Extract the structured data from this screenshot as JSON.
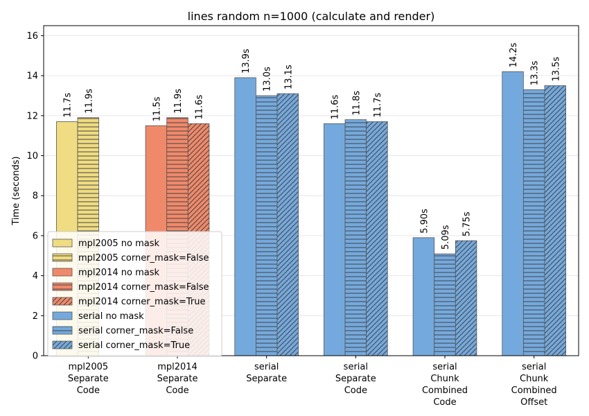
{
  "chart_data": {
    "type": "bar",
    "title": "lines random n=1000 (calculate and render)",
    "xlabel": "",
    "ylabel": "Time (seconds)",
    "ylim": [
      0,
      16.5
    ],
    "yticks": [
      0,
      2,
      4,
      6,
      8,
      10,
      12,
      14,
      16
    ],
    "grid": "horizontal",
    "legend_position": "lower-left",
    "colors": {
      "mpl2005": "#f0dc82",
      "mpl2014": "#f0896a",
      "serial": "#74a9dd"
    },
    "groups": [
      {
        "label": [
          "mpl2005",
          "Separate",
          "Code"
        ],
        "bars": [
          {
            "series": "mpl2005 no mask",
            "value": 11.7,
            "label": "11.7s",
            "color": "#f0dc82",
            "hatch": "none"
          },
          {
            "series": "mpl2005 corner_mask=False",
            "value": 11.9,
            "label": "11.9s",
            "color": "#f0dc82",
            "hatch": "horizontal"
          }
        ]
      },
      {
        "label": [
          "mpl2014",
          "Separate",
          "Code"
        ],
        "bars": [
          {
            "series": "mpl2014 no mask",
            "value": 11.5,
            "label": "11.5s",
            "color": "#f0896a",
            "hatch": "none"
          },
          {
            "series": "mpl2014 corner_mask=False",
            "value": 11.9,
            "label": "11.9s",
            "color": "#f0896a",
            "hatch": "horizontal"
          },
          {
            "series": "mpl2014 corner_mask=True",
            "value": 11.6,
            "label": "11.6s",
            "color": "#f0896a",
            "hatch": "diagonal"
          }
        ]
      },
      {
        "label": [
          "serial",
          "Separate"
        ],
        "bars": [
          {
            "series": "serial no mask",
            "value": 13.9,
            "label": "13.9s",
            "color": "#74a9dd",
            "hatch": "none"
          },
          {
            "series": "serial corner_mask=False",
            "value": 13.0,
            "label": "13.0s",
            "color": "#74a9dd",
            "hatch": "horizontal"
          },
          {
            "series": "serial corner_mask=True",
            "value": 13.1,
            "label": "13.1s",
            "color": "#74a9dd",
            "hatch": "diagonal"
          }
        ]
      },
      {
        "label": [
          "serial",
          "Separate",
          "Code"
        ],
        "bars": [
          {
            "series": "serial no mask",
            "value": 11.6,
            "label": "11.6s",
            "color": "#74a9dd",
            "hatch": "none"
          },
          {
            "series": "serial corner_mask=False",
            "value": 11.8,
            "label": "11.8s",
            "color": "#74a9dd",
            "hatch": "horizontal"
          },
          {
            "series": "serial corner_mask=True",
            "value": 11.7,
            "label": "11.7s",
            "color": "#74a9dd",
            "hatch": "diagonal"
          }
        ]
      },
      {
        "label": [
          "serial",
          "Chunk",
          "Combined",
          "Code"
        ],
        "bars": [
          {
            "series": "serial no mask",
            "value": 5.9,
            "label": "5.90s",
            "color": "#74a9dd",
            "hatch": "none"
          },
          {
            "series": "serial corner_mask=False",
            "value": 5.09,
            "label": "5.09s",
            "color": "#74a9dd",
            "hatch": "horizontal"
          },
          {
            "series": "serial corner_mask=True",
            "value": 5.75,
            "label": "5.75s",
            "color": "#74a9dd",
            "hatch": "diagonal"
          }
        ]
      },
      {
        "label": [
          "serial",
          "Chunk",
          "Combined",
          "Offset"
        ],
        "bars": [
          {
            "series": "serial no mask",
            "value": 14.2,
            "label": "14.2s",
            "color": "#74a9dd",
            "hatch": "none"
          },
          {
            "series": "serial corner_mask=False",
            "value": 13.3,
            "label": "13.3s",
            "color": "#74a9dd",
            "hatch": "horizontal"
          },
          {
            "series": "serial corner_mask=True",
            "value": 13.5,
            "label": "13.5s",
            "color": "#74a9dd",
            "hatch": "diagonal"
          }
        ]
      }
    ],
    "legend": [
      {
        "name": "mpl2005 no mask",
        "color": "#f0dc82",
        "hatch": "none"
      },
      {
        "name": "mpl2005 corner_mask=False",
        "color": "#f0dc82",
        "hatch": "horizontal"
      },
      {
        "name": "mpl2014 no mask",
        "color": "#f0896a",
        "hatch": "none"
      },
      {
        "name": "mpl2014 corner_mask=False",
        "color": "#f0896a",
        "hatch": "horizontal"
      },
      {
        "name": "mpl2014 corner_mask=True",
        "color": "#f0896a",
        "hatch": "diagonal"
      },
      {
        "name": "serial no mask",
        "color": "#74a9dd",
        "hatch": "none"
      },
      {
        "name": "serial corner_mask=False",
        "color": "#74a9dd",
        "hatch": "horizontal"
      },
      {
        "name": "serial corner_mask=True",
        "color": "#74a9dd",
        "hatch": "diagonal"
      }
    ]
  }
}
